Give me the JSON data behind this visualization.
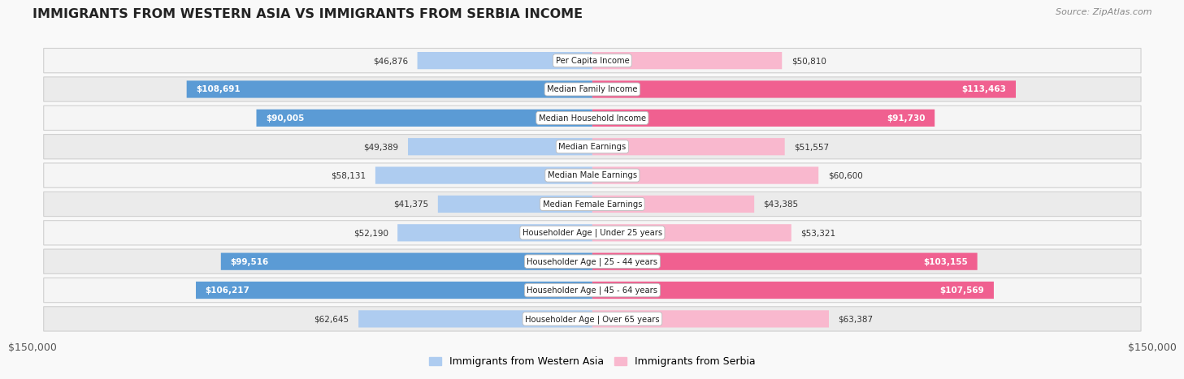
{
  "title": "IMMIGRANTS FROM WESTERN ASIA VS IMMIGRANTS FROM SERBIA INCOME",
  "source": "Source: ZipAtlas.com",
  "categories": [
    "Per Capita Income",
    "Median Family Income",
    "Median Household Income",
    "Median Earnings",
    "Median Male Earnings",
    "Median Female Earnings",
    "Householder Age | Under 25 years",
    "Householder Age | 25 - 44 years",
    "Householder Age | 45 - 64 years",
    "Householder Age | Over 65 years"
  ],
  "western_asia_values": [
    46876,
    108691,
    90005,
    49389,
    58131,
    41375,
    52190,
    99516,
    106217,
    62645
  ],
  "serbia_values": [
    50810,
    113463,
    91730,
    51557,
    60600,
    43385,
    53321,
    103155,
    107569,
    63387
  ],
  "western_asia_labels": [
    "$46,876",
    "$108,691",
    "$90,005",
    "$49,389",
    "$58,131",
    "$41,375",
    "$52,190",
    "$99,516",
    "$106,217",
    "$62,645"
  ],
  "serbia_labels": [
    "$50,810",
    "$113,463",
    "$91,730",
    "$51,557",
    "$60,600",
    "$43,385",
    "$53,321",
    "$103,155",
    "$107,569",
    "$63,387"
  ],
  "wa_label_inside": [
    false,
    true,
    true,
    false,
    false,
    false,
    false,
    true,
    true,
    false
  ],
  "ser_label_inside": [
    false,
    true,
    true,
    false,
    false,
    false,
    false,
    true,
    true,
    false
  ],
  "max_value": 150000,
  "wa_color_light": "#aeccf0",
  "wa_color_dark": "#5b9bd5",
  "ser_color_light": "#f9b8ce",
  "ser_color_dark": "#f06090",
  "bar_height": 0.6,
  "row_bg_colors": [
    "#f5f5f5",
    "#ebebeb",
    "#f5f5f5",
    "#ebebeb",
    "#f5f5f5",
    "#ebebeb",
    "#f5f5f5",
    "#ebebeb",
    "#f5f5f5",
    "#ebebeb"
  ],
  "fig_bg": "#f9f9f9",
  "legend_western_asia": "Immigrants from Western Asia",
  "legend_serbia": "Immigrants from Serbia",
  "x_tick_label_left": "$150,000",
  "x_tick_label_right": "$150,000",
  "wa_use_dark": [
    false,
    true,
    true,
    false,
    false,
    false,
    false,
    true,
    true,
    false
  ],
  "ser_use_dark": [
    false,
    true,
    true,
    false,
    false,
    false,
    false,
    true,
    true,
    false
  ]
}
